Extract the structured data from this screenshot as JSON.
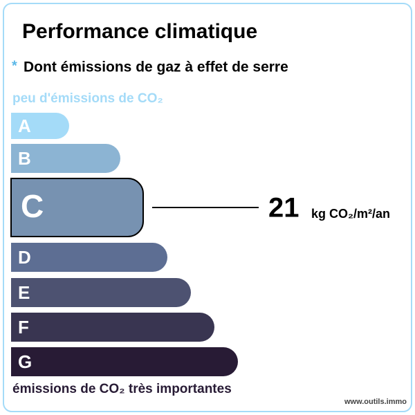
{
  "header": {
    "title": "Performance climatique",
    "asterisk": "*",
    "subtitle": "Dont émissions de gaz à effet de serre"
  },
  "scale": {
    "top_label": "peu d'émissions de CO₂",
    "bottom_label": "émissions de CO₂ très importantes",
    "current_class": "C",
    "classes": [
      {
        "letter": "A",
        "color": "#a4dbf8"
      },
      {
        "letter": "B",
        "color": "#8cb4d3"
      },
      {
        "letter": "C",
        "color": "#7792b1"
      },
      {
        "letter": "D",
        "color": "#5d6e93"
      },
      {
        "letter": "E",
        "color": "#4d5271"
      },
      {
        "letter": "F",
        "color": "#393551"
      },
      {
        "letter": "G",
        "color": "#281b35"
      }
    ]
  },
  "result": {
    "value": 21,
    "unit": "kg CO₂/m²/an"
  },
  "footer": {
    "source": "www.outils.immo"
  }
}
